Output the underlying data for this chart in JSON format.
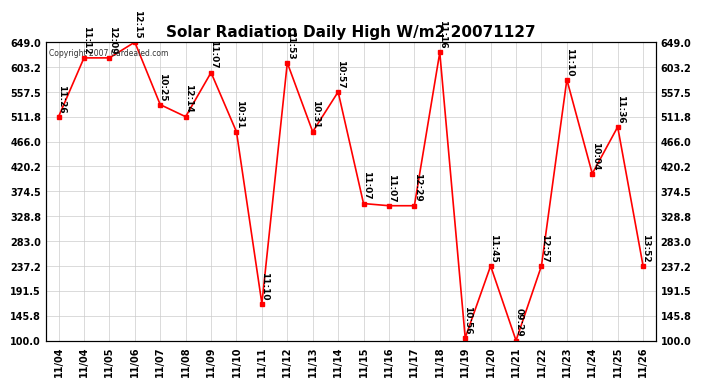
{
  "title": "Solar Radiation Daily High W/m2 20071127",
  "copyright": "Copyright 2007 Cardealed.com",
  "background_color": "#ffffff",
  "line_color": "#ff0000",
  "marker_color": "#ff0000",
  "grid_color": "#cccccc",
  "text_color": "#000000",
  "x_labels": [
    "11/04",
    "11/04",
    "11/05",
    "11/06",
    "11/07",
    "11/08",
    "11/09",
    "11/10",
    "11/11",
    "11/12",
    "11/13",
    "11/14",
    "11/15",
    "11/16",
    "11/17",
    "11/18",
    "11/19",
    "11/20",
    "11/21",
    "11/22",
    "11/23",
    "11/24",
    "11/25",
    "11/26"
  ],
  "values": [
    511.8,
    620.0,
    620.0,
    649.0,
    534.0,
    511.8,
    593.0,
    484.0,
    168.0,
    611.0,
    484.0,
    557.5,
    352.0,
    348.0,
    348.0,
    630.0,
    105.0,
    237.2,
    100.0,
    237.2,
    580.0,
    407.0,
    493.0,
    237.2
  ],
  "time_labels": [
    "11:26",
    "11:12",
    "12:09",
    "12:15",
    "10:25",
    "12:14",
    "11:07",
    "10:31",
    "11:10",
    "11:53",
    "10:31",
    "10:57",
    "11:07",
    "11:07",
    "12:29",
    "11:16",
    "10:56",
    "11:45",
    "09:29",
    "12:57",
    "11:10",
    "10:04",
    "11:36",
    "13:52"
  ],
  "ylim": [
    100.0,
    649.0
  ],
  "yticks": [
    100.0,
    145.8,
    191.5,
    237.2,
    283.0,
    328.8,
    374.5,
    420.2,
    466.0,
    511.8,
    557.5,
    603.2,
    649.0
  ],
  "title_fontsize": 11,
  "label_fontsize": 6.5,
  "axis_fontsize": 7
}
